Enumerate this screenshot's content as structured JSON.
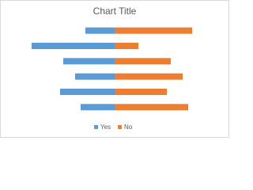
{
  "chart_data": {
    "type": "bar",
    "orientation": "horizontal",
    "title": "Chart Title",
    "categories": [
      null,
      null,
      null,
      null,
      null,
      null
    ],
    "series": [
      {
        "name": "Yes",
        "color": "#5b9bd5",
        "values": [
          -37,
          -105,
          -65,
          -50,
          -69,
          -43
        ]
      },
      {
        "name": "No",
        "color": "#ed7d31",
        "values": [
          98,
          30,
          71,
          86,
          66,
          93
        ]
      }
    ],
    "xlim": [
      -110,
      110
    ],
    "grid": false,
    "legend": "bottom"
  }
}
